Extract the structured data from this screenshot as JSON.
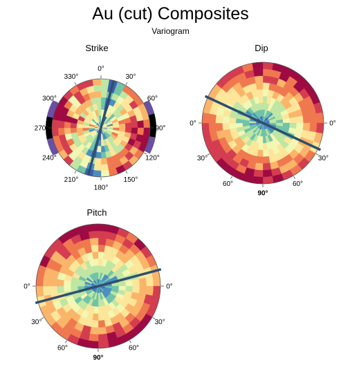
{
  "header": {
    "title": "Au (cut) Composites",
    "subtitle": "Variogram"
  },
  "colors": {
    "palette": [
      "#3d5fae",
      "#4b8fc1",
      "#70c3a8",
      "#bfe6a3",
      "#f2f7b3",
      "#fde69a",
      "#fbb56a",
      "#f0784f",
      "#d43d4f",
      "#9e0b43"
    ],
    "strike_edge_low": "#6a4fa6",
    "strike_edge_black": "#000000",
    "axis_line": "#2e4f6e",
    "outline": "#555555"
  },
  "chart_data": [
    {
      "type": "polar-heatmap",
      "title": "Strike",
      "projection": "full-circle azimuth",
      "tick_labels": [
        "0°",
        "30°",
        "60°",
        "90°",
        "120°",
        "150°",
        "180°",
        "210°",
        "240°",
        "270°",
        "300°",
        "330°"
      ],
      "tick_angles": [
        0,
        30,
        60,
        90,
        120,
        150,
        180,
        210,
        240,
        270,
        300,
        330
      ],
      "major_axis_azimuth": 15,
      "color_scale": "spectral-reversed (low = blue, high = red)"
    },
    {
      "type": "polar-heatmap",
      "title": "Dip",
      "projection": "hemisphere",
      "tick_labels": [
        "0°",
        "30°",
        "60°",
        "90°",
        "60°",
        "30°",
        "0°"
      ],
      "tick_angles_deg_from_right": [
        0,
        -30,
        -60,
        -90,
        -120,
        -150,
        -180
      ],
      "emphasized_tick": "90°",
      "major_axis_angle": 155,
      "color_scale": "spectral-reversed (low = blue, high = red)"
    },
    {
      "type": "polar-heatmap",
      "title": "Pitch",
      "projection": "hemisphere",
      "tick_labels": [
        "0°",
        "30°",
        "60°",
        "90°",
        "60°",
        "30°",
        "0°"
      ],
      "tick_angles_deg_from_right": [
        0,
        -30,
        -60,
        -90,
        -120,
        -150,
        -180
      ],
      "emphasized_tick": "90°",
      "major_axis_angle": 15,
      "color_scale": "spectral-reversed (low = blue, high = red)"
    }
  ]
}
